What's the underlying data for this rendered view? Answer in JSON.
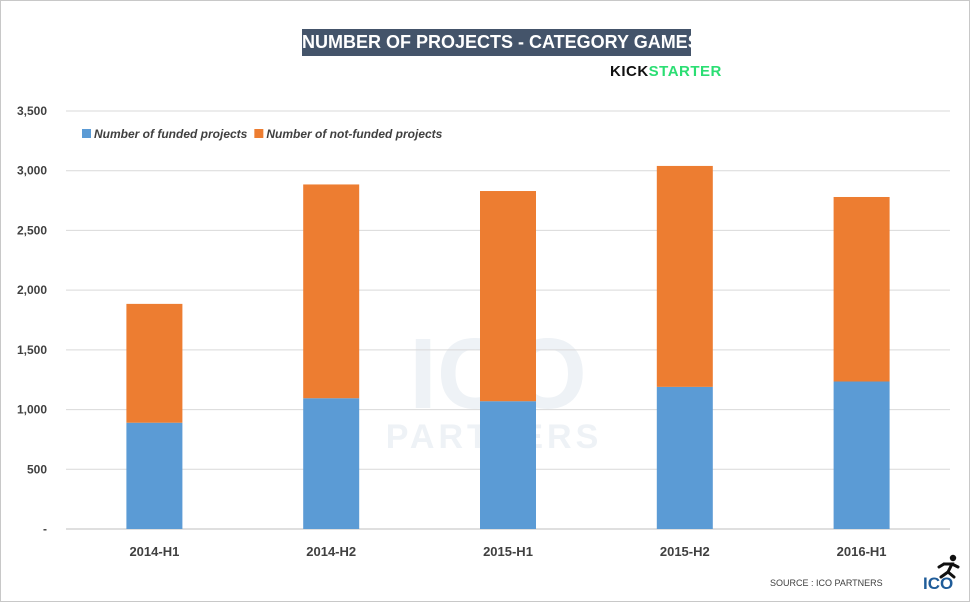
{
  "chart_data": {
    "type": "bar",
    "stacked": true,
    "title": "NUMBER OF PROJECTS - CATEGORY GAMES",
    "brand": {
      "part1": "KICK",
      "part2": "STARTER"
    },
    "categories": [
      "2014-H1",
      "2014-H2",
      "2015-H1",
      "2015-H2",
      "2016-H1"
    ],
    "series": [
      {
        "name": "Number of funded projects",
        "color": "#5b9bd5",
        "values": [
          890,
          1095,
          1070,
          1190,
          1235
        ]
      },
      {
        "name": "Number of not-funded projects",
        "color": "#ed7d31",
        "values": [
          995,
          1790,
          1760,
          1850,
          1545
        ]
      }
    ],
    "ylim": [
      0,
      3500
    ],
    "yticks": [
      0,
      500,
      1000,
      1500,
      2000,
      2500,
      3000,
      3500
    ],
    "ytick_labels": [
      "-",
      "500",
      "1,000",
      "1,500",
      "2,000",
      "2,500",
      "3,000",
      "3,500"
    ],
    "grid": true,
    "legend_position": "top-left",
    "source": "SOURCE : ICO PARTNERS",
    "watermark": {
      "line1": "ICO",
      "line2": "PARTNERS"
    },
    "logo_text": "ICO"
  }
}
